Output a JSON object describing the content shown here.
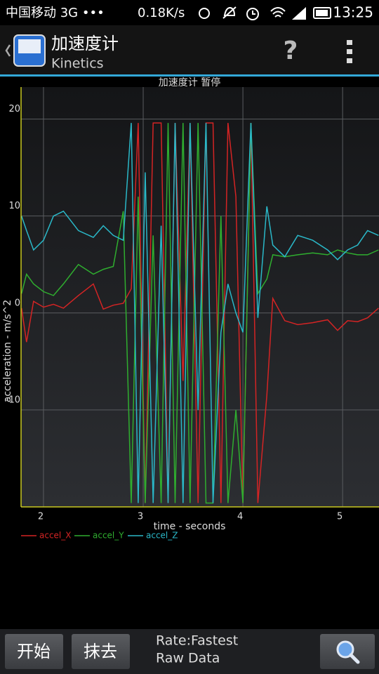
{
  "status_bar": {
    "carrier": "中国移动 3G •••",
    "speed": "0.18K/s",
    "time": "13:25"
  },
  "app_bar": {
    "title": "加速度计",
    "subtitle": "Kinetics",
    "help": "?"
  },
  "chart_data": {
    "type": "line",
    "title": "加速度计 暂停",
    "x_label": "time - seconds",
    "y_label": "acceleration - m/s^2",
    "x": [
      1.78,
      1.83,
      1.9,
      2.0,
      2.1,
      2.2,
      2.35,
      2.5,
      2.6,
      2.7,
      2.8,
      2.88,
      2.95,
      3.02,
      3.1,
      3.18,
      3.25,
      3.32,
      3.4,
      3.47,
      3.55,
      3.63,
      3.7,
      3.78,
      3.85,
      3.93,
      4.0,
      4.08,
      4.15,
      4.24,
      4.3,
      4.42,
      4.55,
      4.7,
      4.85,
      4.95,
      5.05,
      5.15,
      5.25,
      5.36
    ],
    "series": [
      {
        "name": "accel_X",
        "color": "#d42424",
        "values": [
          0.5,
          -3,
          1.2,
          0.6,
          0.9,
          0.5,
          1.8,
          3,
          0.4,
          0.8,
          1,
          2.5,
          19.6,
          -19.6,
          19.6,
          19.6,
          -19.6,
          19.6,
          -7,
          19.6,
          -19.6,
          19.6,
          19.6,
          -19.6,
          19.6,
          12,
          -19.6,
          19.6,
          -19.6,
          -8.5,
          1.5,
          -0.8,
          -1.2,
          -1,
          -0.7,
          -1.8,
          -0.8,
          -0.9,
          -0.5,
          0.5
        ]
      },
      {
        "name": "accel_Y",
        "color": "#2fae2f",
        "values": [
          2,
          4,
          3,
          2.2,
          1.8,
          3,
          5,
          4,
          4.5,
          4.8,
          10.5,
          -19.6,
          12,
          -19.6,
          8,
          -19.6,
          19.6,
          -19.6,
          19.6,
          -19.6,
          19.6,
          -19.6,
          -19.6,
          10,
          -19.6,
          -10,
          -19.6,
          19.6,
          2,
          3.5,
          6,
          5.8,
          6,
          6.2,
          6,
          6.5,
          6.2,
          6,
          6,
          6.5
        ]
      },
      {
        "name": "accel_Z",
        "color": "#2ab8c8",
        "values": [
          10,
          8.5,
          6.5,
          7.5,
          10,
          10.5,
          8.5,
          7.8,
          9,
          8,
          7.5,
          19.6,
          -19.6,
          14.5,
          -19.6,
          9,
          -19.6,
          19.6,
          -19.6,
          19.6,
          -10,
          19.6,
          -19.6,
          -2,
          3,
          0,
          -2,
          19.6,
          -0.5,
          11,
          7,
          5.8,
          8,
          7.5,
          6.5,
          5.5,
          6.5,
          7,
          8.5,
          8
        ]
      }
    ],
    "xlim": [
      1.775,
      5.365
    ],
    "ylim": [
      -20,
      23.3
    ],
    "xticks": [
      2,
      3,
      4,
      5
    ],
    "yticks": [
      -10,
      0,
      10,
      20
    ],
    "grid": true
  },
  "bottom_bar": {
    "buttons": [
      "开始",
      "抹去"
    ],
    "info": [
      "Rate:Fastest",
      "Raw Data"
    ]
  }
}
